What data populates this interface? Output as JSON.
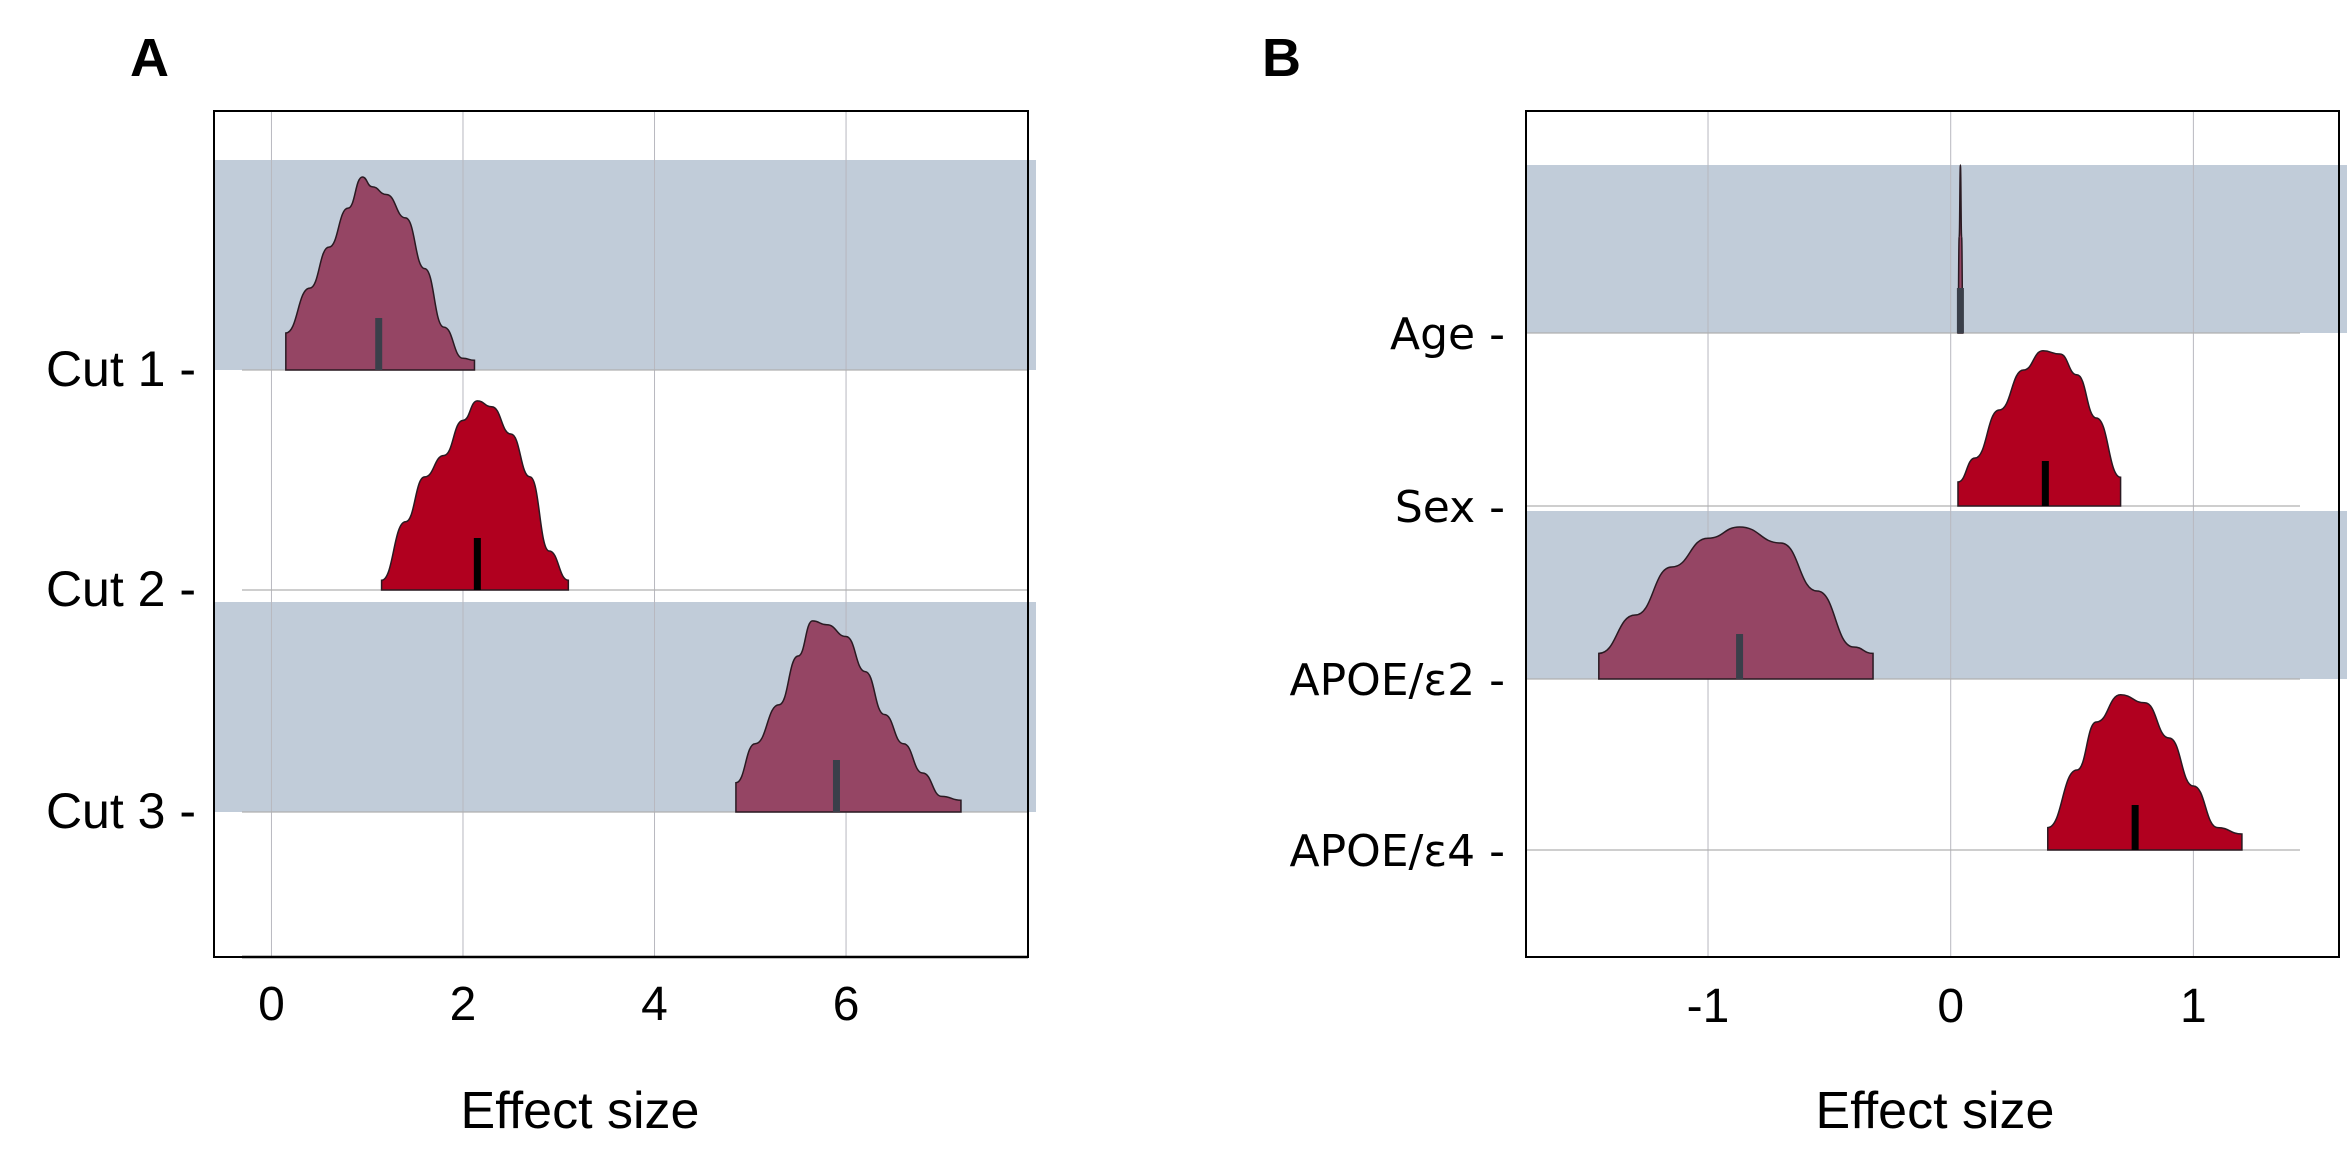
{
  "figure": {
    "panels": [
      "A",
      "B"
    ]
  },
  "chart_data": [
    {
      "panel": "A",
      "type": "area",
      "subtype": "ridgeline-density",
      "xlabel": "Effect size",
      "xlim": [
        -0.6,
        7.9
      ],
      "xticks": [
        0,
        2,
        4,
        6
      ],
      "xtick_labels": [
        "0",
        "2",
        "4",
        "6"
      ],
      "categories": [
        "Cut 1",
        "Cut 2",
        "Cut 3"
      ],
      "category_labels": [
        "Cut 1 -",
        "Cut 2 -",
        "Cut 3 -"
      ],
      "ridges": [
        {
          "name": "Cut 1",
          "highlighted": true,
          "median": 1.12,
          "x": [
            0.15,
            0.4,
            0.6,
            0.8,
            0.95,
            1.05,
            1.2,
            1.4,
            1.6,
            1.8,
            2.0,
            2.12
          ],
          "density": [
            0.19,
            0.42,
            0.63,
            0.83,
            0.99,
            0.94,
            0.9,
            0.78,
            0.52,
            0.22,
            0.06,
            0.05
          ]
        },
        {
          "name": "Cut 2",
          "highlighted": false,
          "median": 2.15,
          "x": [
            1.15,
            1.4,
            1.6,
            1.8,
            2.0,
            2.15,
            2.3,
            2.5,
            2.7,
            2.9,
            3.1
          ],
          "density": [
            0.05,
            0.35,
            0.58,
            0.69,
            0.87,
            0.97,
            0.94,
            0.8,
            0.58,
            0.2,
            0.05
          ]
        },
        {
          "name": "Cut 3",
          "highlighted": true,
          "median": 5.9,
          "x": [
            4.85,
            5.05,
            5.3,
            5.5,
            5.65,
            5.8,
            6.0,
            6.2,
            6.4,
            6.6,
            6.8,
            7.0,
            7.2
          ],
          "density": [
            0.15,
            0.35,
            0.55,
            0.8,
            0.98,
            0.96,
            0.9,
            0.72,
            0.5,
            0.35,
            0.2,
            0.08,
            0.06
          ]
        }
      ],
      "highlight_color": "#c1ccd9",
      "fill_color": "#b1001f",
      "shaded_fill_color": "#954564",
      "median_color": "#000000",
      "shaded_median_color": "#3a3f4a"
    },
    {
      "panel": "B",
      "type": "area",
      "subtype": "ridgeline-density",
      "xlabel": "Effect size",
      "xlim": [
        -1.75,
        1.6
      ],
      "xticks": [
        -1,
        0,
        1
      ],
      "xtick_labels": [
        "-1",
        "0",
        "1"
      ],
      "categories": [
        "Age",
        "Sex",
        "APOE/ε2",
        "APOE/ε4"
      ],
      "category_labels": [
        "Age -",
        "Sex -",
        "APOE/ε2 -",
        "APOE/ε4 -"
      ],
      "ridges": [
        {
          "name": "Age",
          "highlighted": true,
          "median": 0.04,
          "x": [
            0.03,
            0.035,
            0.04,
            0.045,
            0.05
          ],
          "density": [
            0.05,
            0.6,
            1.05,
            0.6,
            0.05
          ]
        },
        {
          "name": "Sex",
          "highlighted": false,
          "median": 0.39,
          "x": [
            0.03,
            0.1,
            0.2,
            0.3,
            0.38,
            0.45,
            0.52,
            0.6,
            0.7
          ],
          "density": [
            0.15,
            0.3,
            0.6,
            0.85,
            0.97,
            0.95,
            0.82,
            0.55,
            0.18
          ]
        },
        {
          "name": "APOE/ε2",
          "highlighted": true,
          "median": -0.87,
          "x": [
            -1.45,
            -1.3,
            -1.15,
            -1.0,
            -0.87,
            -0.7,
            -0.55,
            -0.4,
            -0.32
          ],
          "density": [
            0.16,
            0.4,
            0.7,
            0.88,
            0.95,
            0.85,
            0.55,
            0.2,
            0.16
          ]
        },
        {
          "name": "APOE/ε4",
          "highlighted": false,
          "median": 0.76,
          "x": [
            0.4,
            0.52,
            0.6,
            0.7,
            0.8,
            0.9,
            1.0,
            1.1,
            1.2
          ],
          "density": [
            0.14,
            0.5,
            0.8,
            0.97,
            0.92,
            0.7,
            0.4,
            0.14,
            0.1
          ]
        }
      ],
      "highlight_color": "#c1ccd9",
      "fill_color": "#b1001f",
      "shaded_fill_color": "#954564",
      "median_color": "#000000",
      "shaded_median_color": "#3a3f4a"
    }
  ]
}
